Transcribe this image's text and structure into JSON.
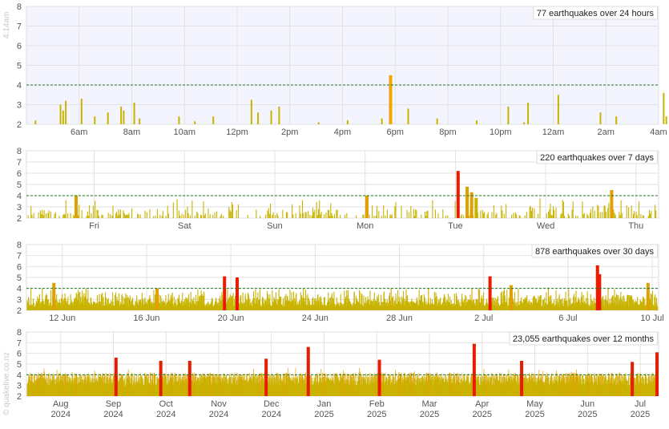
{
  "side_labels": {
    "timestamp": "4:14am",
    "site": "© quakelive.co.nz"
  },
  "colors": {
    "bar_small": "#c8b400",
    "bar_medium": "#e0a000",
    "bar_large": "#e81c00",
    "bar_orange": "#f0a800",
    "background_recent": "#f4f4ff",
    "grid": "#e2e2e2",
    "threshold": "#1a7a1a",
    "axis_text": "#555555"
  },
  "chart_data": [
    {
      "type": "bar",
      "title": "77 earthquakes over 24 hours",
      "xlabel": "",
      "ylabel": "",
      "ylim": [
        2,
        8
      ],
      "yticks": [
        "2",
        "3",
        "4",
        "5",
        "6",
        "7",
        "8"
      ],
      "threshold": 4,
      "grid": true,
      "legend": "top-right",
      "x_range": [
        0,
        24
      ],
      "xticks": [
        {
          "x": 2,
          "label": "6am"
        },
        {
          "x": 4,
          "label": "8am"
        },
        {
          "x": 6,
          "label": "10am"
        },
        {
          "x": 8,
          "label": "12pm"
        },
        {
          "x": 10,
          "label": "2pm"
        },
        {
          "x": 12,
          "label": "4pm"
        },
        {
          "x": 14,
          "label": "6pm"
        },
        {
          "x": 16,
          "label": "8pm"
        },
        {
          "x": 18,
          "label": "10pm"
        },
        {
          "x": 20,
          "label": "12am"
        },
        {
          "x": 22,
          "label": "2am"
        },
        {
          "x": 24,
          "label": "4am"
        }
      ],
      "points": [
        [
          0.35,
          2.2
        ],
        [
          1.3,
          3.0
        ],
        [
          1.4,
          2.7
        ],
        [
          1.5,
          3.2
        ],
        [
          2.1,
          3.3
        ],
        [
          2.6,
          2.4
        ],
        [
          3.1,
          2.6
        ],
        [
          3.6,
          2.9
        ],
        [
          3.7,
          2.7
        ],
        [
          4.1,
          3.1
        ],
        [
          4.3,
          2.3
        ],
        [
          5.8,
          2.4
        ],
        [
          7.1,
          2.4
        ],
        [
          8.55,
          3.25
        ],
        [
          8.8,
          2.6
        ],
        [
          9.3,
          2.7
        ],
        [
          9.6,
          2.9
        ],
        [
          12.2,
          2.2
        ],
        [
          13.5,
          2.3
        ],
        [
          13.8,
          4.5
        ],
        [
          14.5,
          2.8
        ],
        [
          15.6,
          2.3
        ],
        [
          17.1,
          2.2
        ],
        [
          18.3,
          2.9
        ],
        [
          19.05,
          3.1
        ],
        [
          20.2,
          3.5
        ],
        [
          21.8,
          2.6
        ],
        [
          22.4,
          2.4
        ],
        [
          24.2,
          3.6
        ],
        [
          24.3,
          2.4
        ],
        [
          18.9,
          2.1
        ],
        [
          11.1,
          2.1
        ],
        [
          6.4,
          2.15
        ]
      ]
    },
    {
      "type": "bar",
      "title": "220 earthquakes over 7 days",
      "xlabel": "",
      "ylabel": "",
      "ylim": [
        2,
        8
      ],
      "yticks": [
        "2",
        "3",
        "4",
        "5",
        "6",
        "7",
        "8"
      ],
      "threshold": 4,
      "grid": true,
      "legend": "top-right",
      "x_range": [
        0,
        7
      ],
      "xticks": [
        {
          "x": 0.75,
          "label": "Fri"
        },
        {
          "x": 1.75,
          "label": "Sat"
        },
        {
          "x": 2.75,
          "label": "Sun"
        },
        {
          "x": 3.75,
          "label": "Mon"
        },
        {
          "x": 4.75,
          "label": "Tue"
        },
        {
          "x": 5.75,
          "label": "Wed"
        },
        {
          "x": 6.75,
          "label": "Thu"
        }
      ],
      "max_markers": [
        [
          4.78,
          6.2
        ],
        [
          4.88,
          4.8
        ],
        [
          4.93,
          4.3
        ],
        [
          6.48,
          4.5
        ],
        [
          0.55,
          4.0
        ],
        [
          3.77,
          4.0
        ],
        [
          4.98,
          3.8
        ]
      ]
    },
    {
      "type": "bar",
      "title": "878 earthquakes over 30 days",
      "xlabel": "",
      "ylabel": "",
      "ylim": [
        2,
        8
      ],
      "yticks": [
        "2",
        "3",
        "4",
        "5",
        "6",
        "7",
        "8"
      ],
      "threshold": 4,
      "grid": true,
      "legend": "top-right",
      "x_range": [
        0,
        30
      ],
      "xticks": [
        {
          "x": 1.7,
          "label": "12 Jun"
        },
        {
          "x": 5.7,
          "label": "16 Jun"
        },
        {
          "x": 9.7,
          "label": "20 Jun"
        },
        {
          "x": 13.7,
          "label": "24 Jun"
        },
        {
          "x": 17.7,
          "label": "28 Jun"
        },
        {
          "x": 21.7,
          "label": "2 Jul"
        },
        {
          "x": 25.7,
          "label": "6 Jul"
        },
        {
          "x": 29.7,
          "label": "10 Jul"
        }
      ],
      "max_markers": [
        [
          9.4,
          5.1
        ],
        [
          10.0,
          5.0
        ],
        [
          22.0,
          5.1
        ],
        [
          27.1,
          6.1
        ],
        [
          27.2,
          5.3
        ],
        [
          1.3,
          4.5
        ],
        [
          23.0,
          4.3
        ],
        [
          29.5,
          4.5
        ],
        [
          6.2,
          4.0
        ]
      ]
    },
    {
      "type": "bar",
      "title": "23,055 earthquakes over 12 months",
      "xlabel": "",
      "ylabel": "",
      "ylim": [
        2,
        8
      ],
      "yticks": [
        "2",
        "3",
        "4",
        "5",
        "6",
        "7",
        "8"
      ],
      "threshold": 4,
      "grid": true,
      "legend": "top-right",
      "x_range": [
        0,
        12
      ],
      "xticks": [
        {
          "x": 0.65,
          "label": "Aug",
          "label2": "2024"
        },
        {
          "x": 1.65,
          "label": "Sep",
          "label2": "2024"
        },
        {
          "x": 2.65,
          "label": "Oct",
          "label2": "2024"
        },
        {
          "x": 3.65,
          "label": "Nov",
          "label2": "2024"
        },
        {
          "x": 4.65,
          "label": "Dec",
          "label2": "2024"
        },
        {
          "x": 5.65,
          "label": "Jan",
          "label2": "2025"
        },
        {
          "x": 6.65,
          "label": "Feb",
          "label2": "2025"
        },
        {
          "x": 7.65,
          "label": "Mar",
          "label2": "2025"
        },
        {
          "x": 8.65,
          "label": "Apr",
          "label2": "2025"
        },
        {
          "x": 9.65,
          "label": "May",
          "label2": "2025"
        },
        {
          "x": 10.65,
          "label": "Jun",
          "label2": "2025"
        },
        {
          "x": 11.65,
          "label": "Jul",
          "label2": "2025"
        }
      ],
      "max_markers": [
        [
          5.35,
          6.6
        ],
        [
          8.5,
          6.9
        ],
        [
          11.97,
          6.1
        ],
        [
          1.7,
          5.6
        ],
        [
          4.55,
          5.5
        ],
        [
          2.55,
          5.3
        ],
        [
          3.1,
          5.3
        ],
        [
          11.5,
          5.2
        ],
        [
          6.7,
          5.4
        ],
        [
          9.4,
          5.3
        ]
      ]
    }
  ]
}
